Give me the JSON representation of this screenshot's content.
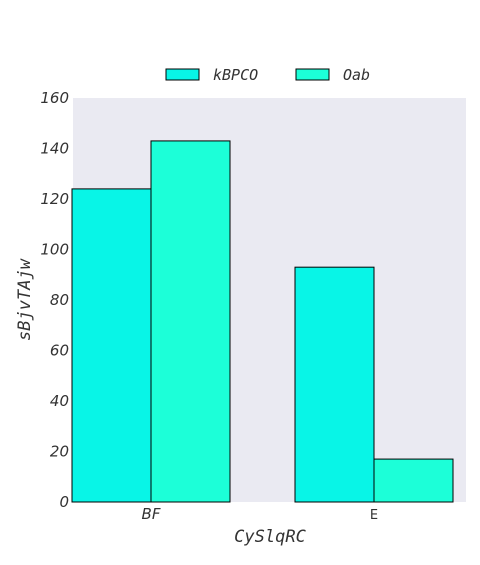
{
  "chart_data": {
    "type": "bar",
    "title": "",
    "xlabel": "CySlqRC",
    "ylabel": "sBjvTAjw",
    "categories": [
      "BF",
      "E"
    ],
    "series": [
      {
        "name": "kBPCO",
        "values": [
          124,
          93
        ],
        "color": "#08f5e7"
      },
      {
        "name": "Oab",
        "values": [
          143,
          17
        ],
        "color": "#1cffd8"
      }
    ],
    "ylim": [
      0,
      160
    ],
    "yticks": [
      0,
      20,
      40,
      60,
      80,
      100,
      120,
      140,
      160
    ],
    "grid": false,
    "legend_position": "top-center",
    "plot_background": "#eaeaf2",
    "bar_edge_color": "#000000"
  }
}
